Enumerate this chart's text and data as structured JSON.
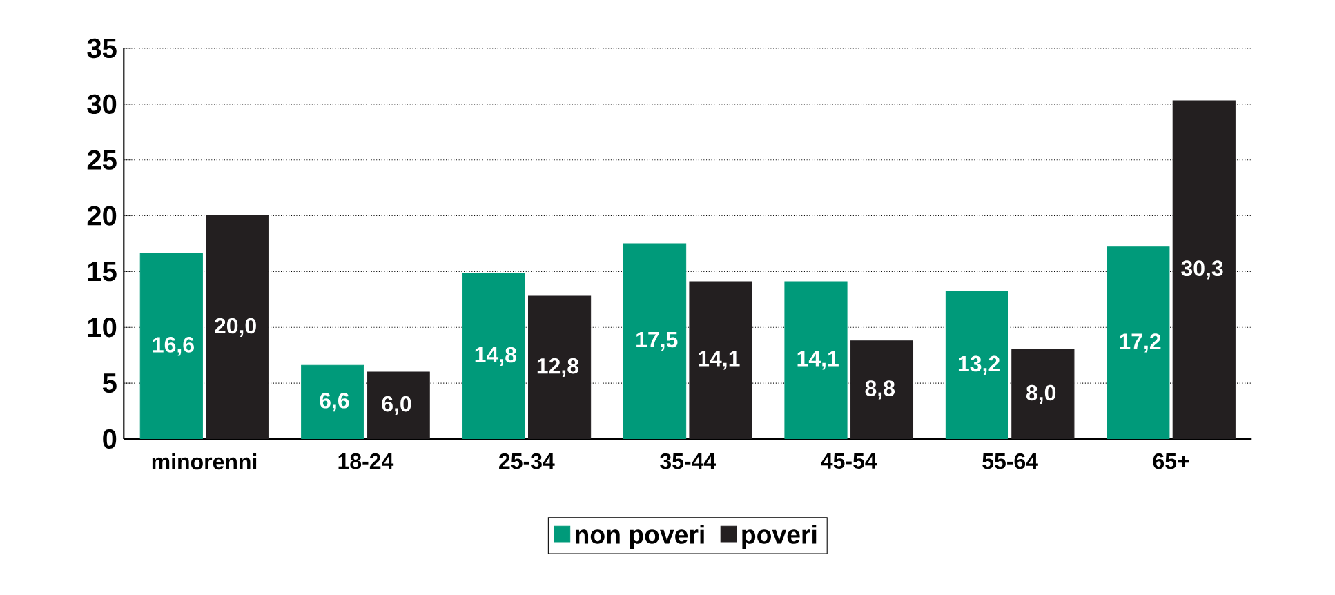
{
  "chart_data": {
    "type": "bar",
    "categories": [
      "minorenni",
      "18-24",
      "25-34",
      "35-44",
      "45-54",
      "55-64",
      "65+"
    ],
    "series": [
      {
        "name": "non poveri",
        "color": "#009a7a",
        "values": [
          16.6,
          6.6,
          14.8,
          17.5,
          14.1,
          13.2,
          17.2
        ],
        "value_labels": [
          "16,6",
          "6,6",
          "14,8",
          "17,5",
          "14,1",
          "13,2",
          "17,2"
        ]
      },
      {
        "name": "poveri",
        "color": "#231f20",
        "values": [
          20.0,
          6.0,
          12.8,
          14.1,
          8.8,
          8.0,
          30.3
        ],
        "value_labels": [
          "20,0",
          "6,0",
          "12,8",
          "14,1",
          "8,8",
          "8,0",
          "30,3"
        ]
      }
    ],
    "ylim": [
      0,
      35
    ],
    "yticks": [
      0,
      5,
      10,
      15,
      20,
      25,
      30,
      35
    ],
    "grid": "y",
    "legend": "bottom"
  }
}
